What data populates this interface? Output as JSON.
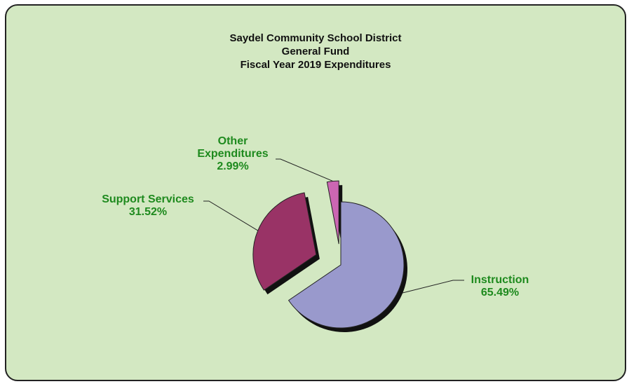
{
  "chart_data": {
    "type": "pie",
    "title": [
      "Saydel Community School District",
      "General Fund",
      "Fiscal Year 2019 Expenditures"
    ],
    "slices": [
      {
        "label": "Instruction",
        "pct_text": "65.49%",
        "value": 65.49,
        "color": "#9999cc"
      },
      {
        "label": "Support Services",
        "pct_text": "31.52%",
        "value": 31.52,
        "color": "#993366"
      },
      {
        "label": "Other Expenditures",
        "label_lines": [
          "Other",
          "Expenditures"
        ],
        "pct_text": "2.99%",
        "value": 2.99,
        "color": "#cc66b3"
      }
    ],
    "legend": "none",
    "label_color": "#1e8a1e",
    "background": "#d3e8c2"
  }
}
